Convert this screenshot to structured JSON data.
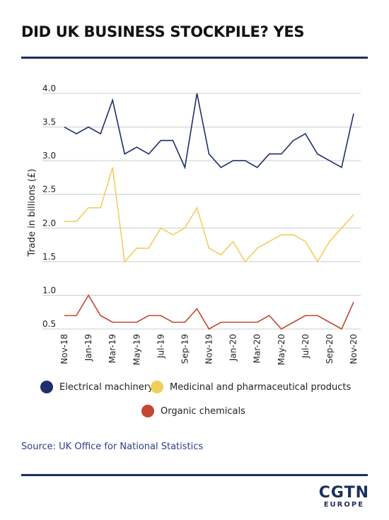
{
  "header": {
    "title": "DID UK BUSINESS STOCKPILE? YES"
  },
  "colors": {
    "rule": "#1d2f5e",
    "source": "#2b3f8c",
    "grid": "#cccccc",
    "axis_text": "#222222"
  },
  "chart_data": {
    "type": "line",
    "ylabel": "Trade in billions (£)",
    "ylim": [
      0.5,
      4.0
    ],
    "yticks": [
      "4.0",
      "3.5",
      "3.0",
      "2.5",
      "2.0",
      "1.5",
      "1.0",
      "0.5"
    ],
    "x": [
      "Nov-18",
      "Dec-18",
      "Jan-19",
      "Feb-19",
      "Mar-19",
      "Apr-19",
      "May-19",
      "Jun-19",
      "Jul-19",
      "Aug-19",
      "Sep-19",
      "Oct-19",
      "Nov-19",
      "Dec-19",
      "Jan-20",
      "Feb-20",
      "Mar-20",
      "Apr-20",
      "May-20",
      "Jun-20",
      "Jul-20",
      "Aug-20",
      "Sep-20",
      "Oct-20",
      "Nov-20"
    ],
    "xticks": [
      "Nov-18",
      "Jan-19",
      "Mar-19",
      "May-19",
      "Jul-19",
      "Sep-19",
      "Nov-19",
      "Jan-20",
      "Mar-20",
      "May-20",
      "Jul-20",
      "Sep-20",
      "Nov-20"
    ],
    "grid": true,
    "legend_position": "bottom",
    "series": [
      {
        "name": "Electrical machinery",
        "color": "#1d2f6e",
        "values": [
          3.5,
          3.4,
          3.5,
          3.4,
          3.9,
          3.1,
          3.2,
          3.1,
          3.3,
          3.3,
          2.9,
          4.0,
          3.1,
          2.9,
          3.0,
          3.0,
          2.9,
          3.1,
          3.1,
          3.3,
          3.4,
          3.1,
          3.0,
          2.9,
          3.7
        ]
      },
      {
        "name": "Medicinal and pharmaceutical products",
        "color": "#f0cf5a",
        "values": [
          2.1,
          2.1,
          2.3,
          2.3,
          2.9,
          1.5,
          1.7,
          1.7,
          2.0,
          1.9,
          2.0,
          2.3,
          1.7,
          1.6,
          1.8,
          1.5,
          1.7,
          1.8,
          1.9,
          1.9,
          1.8,
          1.5,
          1.8,
          2.0,
          2.2
        ]
      },
      {
        "name": "Organic chemicals",
        "color": "#c24632",
        "values": [
          0.7,
          0.7,
          1.0,
          0.7,
          0.6,
          0.6,
          0.6,
          0.7,
          0.7,
          0.6,
          0.6,
          0.8,
          0.5,
          0.6,
          0.6,
          0.6,
          0.6,
          0.7,
          0.5,
          0.6,
          0.7,
          0.7,
          0.6,
          0.5,
          0.9
        ]
      }
    ]
  },
  "legend": {
    "items": [
      {
        "label": "Electrical machinery",
        "color": "#1d2f6e"
      },
      {
        "label": "Medicinal and pharmaceutical products",
        "color": "#f0cf5a"
      },
      {
        "label": "Organic chemicals",
        "color": "#c24632"
      }
    ]
  },
  "footer": {
    "source": "Source: UK Office for National Statistics",
    "logo_main": "CGTN",
    "logo_sub": "EUROPE"
  }
}
